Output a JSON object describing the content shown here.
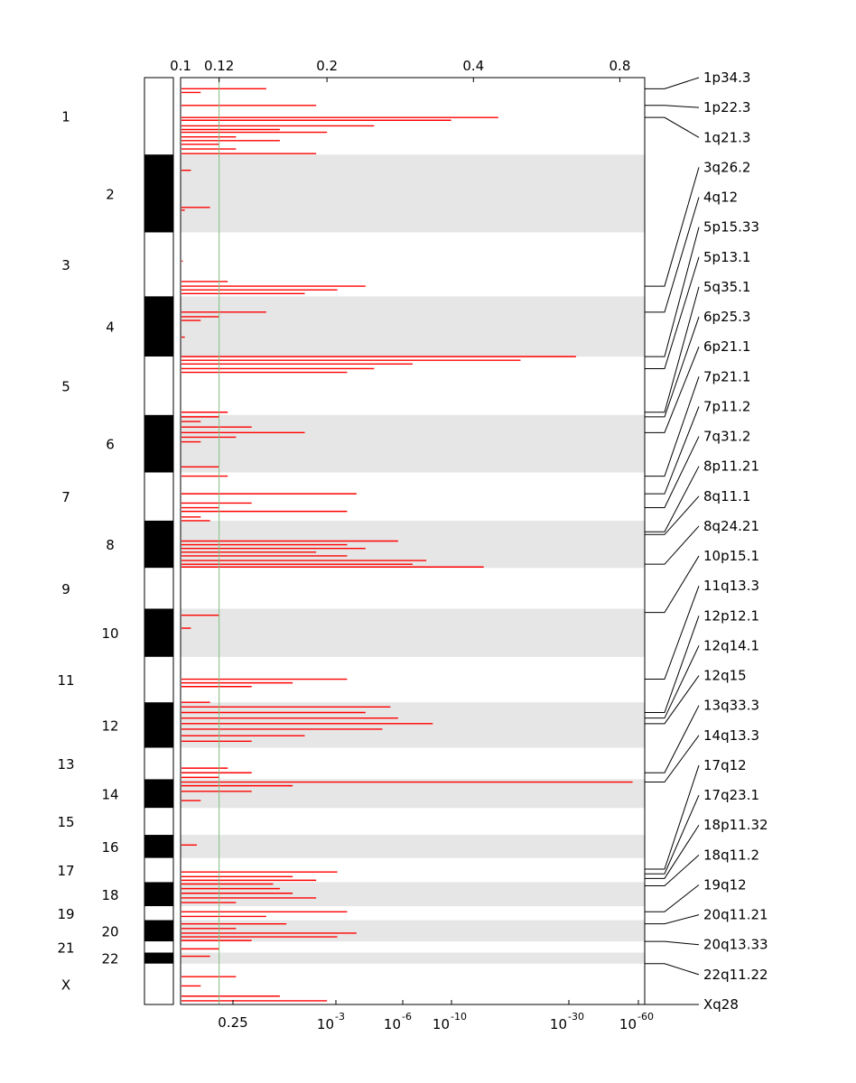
{
  "chart_data": {
    "type": "genome-plot",
    "colors": {
      "axis": "#000000",
      "stripe": "#e6e6e6",
      "segment": "#ff0000",
      "threshold": "#7fbf7f",
      "karyotype_dark": "#000000",
      "karyotype_light": "#ffffff"
    },
    "top_axis": {
      "ticks": [
        {
          "label": "0.1",
          "value": 0.1
        },
        {
          "label": "0.12",
          "value": 0.12
        },
        {
          "label": "0.2",
          "value": 0.2
        },
        {
          "label": "0.4",
          "value": 0.4
        },
        {
          "label": "0.8",
          "value": 0.8
        }
      ]
    },
    "bottom_axis": {
      "ticks": [
        {
          "label": "0.25",
          "base": "",
          "exp": "",
          "value": 0.25
        },
        {
          "label": "10",
          "base": "10",
          "exp": "-3",
          "value": 0.001
        },
        {
          "label": "10",
          "base": "10",
          "exp": "-6",
          "value": 1e-06
        },
        {
          "label": "10",
          "base": "10",
          "exp": "-10",
          "value": 1e-10
        },
        {
          "label": "10",
          "base": "10",
          "exp": "-30",
          "value": 1e-30
        },
        {
          "label": "10",
          "base": "10",
          "exp": "-60",
          "value": 1e-60
        }
      ]
    },
    "threshold": {
      "top_value": 0.12,
      "bottom_value": 0.25
    },
    "chromosomes": [
      {
        "name": "1",
        "start": 0.0,
        "end": 0.083
      },
      {
        "name": "2",
        "start": 0.083,
        "end": 0.167
      },
      {
        "name": "3",
        "start": 0.167,
        "end": 0.236
      },
      {
        "name": "4",
        "start": 0.236,
        "end": 0.301
      },
      {
        "name": "5",
        "start": 0.301,
        "end": 0.364
      },
      {
        "name": "6",
        "start": 0.364,
        "end": 0.426
      },
      {
        "name": "7",
        "start": 0.426,
        "end": 0.478
      },
      {
        "name": "8",
        "start": 0.478,
        "end": 0.529
      },
      {
        "name": "9",
        "start": 0.529,
        "end": 0.573
      },
      {
        "name": "10",
        "start": 0.573,
        "end": 0.625
      },
      {
        "name": "11",
        "start": 0.625,
        "end": 0.674
      },
      {
        "name": "12",
        "start": 0.674,
        "end": 0.723
      },
      {
        "name": "13",
        "start": 0.723,
        "end": 0.757
      },
      {
        "name": "14",
        "start": 0.757,
        "end": 0.788
      },
      {
        "name": "15",
        "start": 0.788,
        "end": 0.817
      },
      {
        "name": "16",
        "start": 0.817,
        "end": 0.842
      },
      {
        "name": "17",
        "start": 0.842,
        "end": 0.868
      },
      {
        "name": "18",
        "start": 0.868,
        "end": 0.894
      },
      {
        "name": "19",
        "start": 0.894,
        "end": 0.909
      },
      {
        "name": "20",
        "start": 0.909,
        "end": 0.932
      },
      {
        "name": "21",
        "start": 0.932,
        "end": 0.944
      },
      {
        "name": "22",
        "start": 0.944,
        "end": 0.956
      },
      {
        "name": "X",
        "start": 0.956,
        "end": 1.0
      }
    ],
    "segments": [
      {
        "pos": 0.012,
        "value": 0.15
      },
      {
        "pos": 0.016,
        "value": 0.11
      },
      {
        "pos": 0.03,
        "value": 0.19
      },
      {
        "pos": 0.043,
        "value": 0.45
      },
      {
        "pos": 0.046,
        "value": 0.36
      },
      {
        "pos": 0.052,
        "value": 0.25
      },
      {
        "pos": 0.056,
        "value": 0.16
      },
      {
        "pos": 0.059,
        "value": 0.2
      },
      {
        "pos": 0.064,
        "value": 0.13
      },
      {
        "pos": 0.068,
        "value": 0.16
      },
      {
        "pos": 0.072,
        "value": 0.12
      },
      {
        "pos": 0.077,
        "value": 0.13
      },
      {
        "pos": 0.082,
        "value": 0.19
      },
      {
        "pos": 0.1,
        "value": 0.105
      },
      {
        "pos": 0.14,
        "value": 0.115
      },
      {
        "pos": 0.143,
        "value": 0.102
      },
      {
        "pos": 0.198,
        "value": 0.101
      },
      {
        "pos": 0.22,
        "value": 0.125
      },
      {
        "pos": 0.225,
        "value": 0.24
      },
      {
        "pos": 0.229,
        "value": 0.21
      },
      {
        "pos": 0.233,
        "value": 0.18
      },
      {
        "pos": 0.253,
        "value": 0.15
      },
      {
        "pos": 0.258,
        "value": 0.12
      },
      {
        "pos": 0.262,
        "value": 0.11
      },
      {
        "pos": 0.28,
        "value": 0.102
      },
      {
        "pos": 0.301,
        "value": 0.65
      },
      {
        "pos": 0.305,
        "value": 0.5
      },
      {
        "pos": 0.309,
        "value": 0.3
      },
      {
        "pos": 0.314,
        "value": 0.25
      },
      {
        "pos": 0.318,
        "value": 0.22
      },
      {
        "pos": 0.361,
        "value": 0.125
      },
      {
        "pos": 0.366,
        "value": 0.12
      },
      {
        "pos": 0.371,
        "value": 0.11
      },
      {
        "pos": 0.377,
        "value": 0.14
      },
      {
        "pos": 0.383,
        "value": 0.18
      },
      {
        "pos": 0.388,
        "value": 0.13
      },
      {
        "pos": 0.393,
        "value": 0.11
      },
      {
        "pos": 0.42,
        "value": 0.12
      },
      {
        "pos": 0.43,
        "value": 0.125
      },
      {
        "pos": 0.449,
        "value": 0.23
      },
      {
        "pos": 0.459,
        "value": 0.14
      },
      {
        "pos": 0.464,
        "value": 0.12
      },
      {
        "pos": 0.468,
        "value": 0.22
      },
      {
        "pos": 0.474,
        "value": 0.11
      },
      {
        "pos": 0.478,
        "value": 0.115
      },
      {
        "pos": 0.5,
        "value": 0.28
      },
      {
        "pos": 0.504,
        "value": 0.22
      },
      {
        "pos": 0.508,
        "value": 0.24
      },
      {
        "pos": 0.512,
        "value": 0.19
      },
      {
        "pos": 0.516,
        "value": 0.22
      },
      {
        "pos": 0.521,
        "value": 0.32
      },
      {
        "pos": 0.525,
        "value": 0.3
      },
      {
        "pos": 0.528,
        "value": 0.42
      },
      {
        "pos": 0.58,
        "value": 0.12
      },
      {
        "pos": 0.594,
        "value": 0.105
      },
      {
        "pos": 0.649,
        "value": 0.22
      },
      {
        "pos": 0.653,
        "value": 0.17
      },
      {
        "pos": 0.657,
        "value": 0.14
      },
      {
        "pos": 0.674,
        "value": 0.115
      },
      {
        "pos": 0.679,
        "value": 0.27
      },
      {
        "pos": 0.685,
        "value": 0.24
      },
      {
        "pos": 0.691,
        "value": 0.28
      },
      {
        "pos": 0.697,
        "value": 0.33
      },
      {
        "pos": 0.703,
        "value": 0.26
      },
      {
        "pos": 0.71,
        "value": 0.18
      },
      {
        "pos": 0.716,
        "value": 0.14
      },
      {
        "pos": 0.745,
        "value": 0.125
      },
      {
        "pos": 0.75,
        "value": 0.14
      },
      {
        "pos": 0.755,
        "value": 0.12
      },
      {
        "pos": 0.76,
        "value": 0.85
      },
      {
        "pos": 0.764,
        "value": 0.17
      },
      {
        "pos": 0.77,
        "value": 0.14
      },
      {
        "pos": 0.78,
        "value": 0.11
      },
      {
        "pos": 0.828,
        "value": 0.108
      },
      {
        "pos": 0.857,
        "value": 0.21
      },
      {
        "pos": 0.862,
        "value": 0.17
      },
      {
        "pos": 0.866,
        "value": 0.19
      },
      {
        "pos": 0.87,
        "value": 0.155
      },
      {
        "pos": 0.875,
        "value": 0.16
      },
      {
        "pos": 0.88,
        "value": 0.17
      },
      {
        "pos": 0.885,
        "value": 0.19
      },
      {
        "pos": 0.89,
        "value": 0.13
      },
      {
        "pos": 0.9,
        "value": 0.22
      },
      {
        "pos": 0.905,
        "value": 0.15
      },
      {
        "pos": 0.913,
        "value": 0.165
      },
      {
        "pos": 0.918,
        "value": 0.13
      },
      {
        "pos": 0.923,
        "value": 0.23
      },
      {
        "pos": 0.927,
        "value": 0.21
      },
      {
        "pos": 0.931,
        "value": 0.14
      },
      {
        "pos": 0.94,
        "value": 0.12
      },
      {
        "pos": 0.948,
        "value": 0.115
      },
      {
        "pos": 0.97,
        "value": 0.13
      },
      {
        "pos": 0.98,
        "value": 0.11
      },
      {
        "pos": 0.991,
        "value": 0.16
      },
      {
        "pos": 0.996,
        "value": 0.2
      }
    ],
    "cytobands": [
      {
        "label": "1p34.3",
        "pos": 0.012
      },
      {
        "label": "1p22.3",
        "pos": 0.03
      },
      {
        "label": "1q21.3",
        "pos": 0.043
      },
      {
        "label": "3q26.2",
        "pos": 0.225
      },
      {
        "label": "4q12",
        "pos": 0.253
      },
      {
        "label": "5p15.33",
        "pos": 0.301
      },
      {
        "label": "5p13.1",
        "pos": 0.314
      },
      {
        "label": "5q35.1",
        "pos": 0.361
      },
      {
        "label": "6p25.3",
        "pos": 0.366
      },
      {
        "label": "6p21.1",
        "pos": 0.383
      },
      {
        "label": "7p21.1",
        "pos": 0.43
      },
      {
        "label": "7p11.2",
        "pos": 0.449
      },
      {
        "label": "7q31.2",
        "pos": 0.464
      },
      {
        "label": "8p11.21",
        "pos": 0.49
      },
      {
        "label": "8q11.1",
        "pos": 0.493
      },
      {
        "label": "8q24.21",
        "pos": 0.525
      },
      {
        "label": "10p15.1",
        "pos": 0.577
      },
      {
        "label": "11q13.3",
        "pos": 0.649
      },
      {
        "label": "12p12.1",
        "pos": 0.685
      },
      {
        "label": "12q14.1",
        "pos": 0.691
      },
      {
        "label": "12q15",
        "pos": 0.697
      },
      {
        "label": "13q33.3",
        "pos": 0.75
      },
      {
        "label": "14q13.3",
        "pos": 0.76
      },
      {
        "label": "17q12",
        "pos": 0.854
      },
      {
        "label": "17q23.1",
        "pos": 0.859
      },
      {
        "label": "18p11.32",
        "pos": 0.864
      },
      {
        "label": "18q11.2",
        "pos": 0.872
      },
      {
        "label": "19q12",
        "pos": 0.9
      },
      {
        "label": "20q11.21",
        "pos": 0.913
      },
      {
        "label": "20q13.33",
        "pos": 0.932
      },
      {
        "label": "22q11.22",
        "pos": 0.956
      },
      {
        "label": "Xq28",
        "pos": 1.0
      }
    ]
  }
}
